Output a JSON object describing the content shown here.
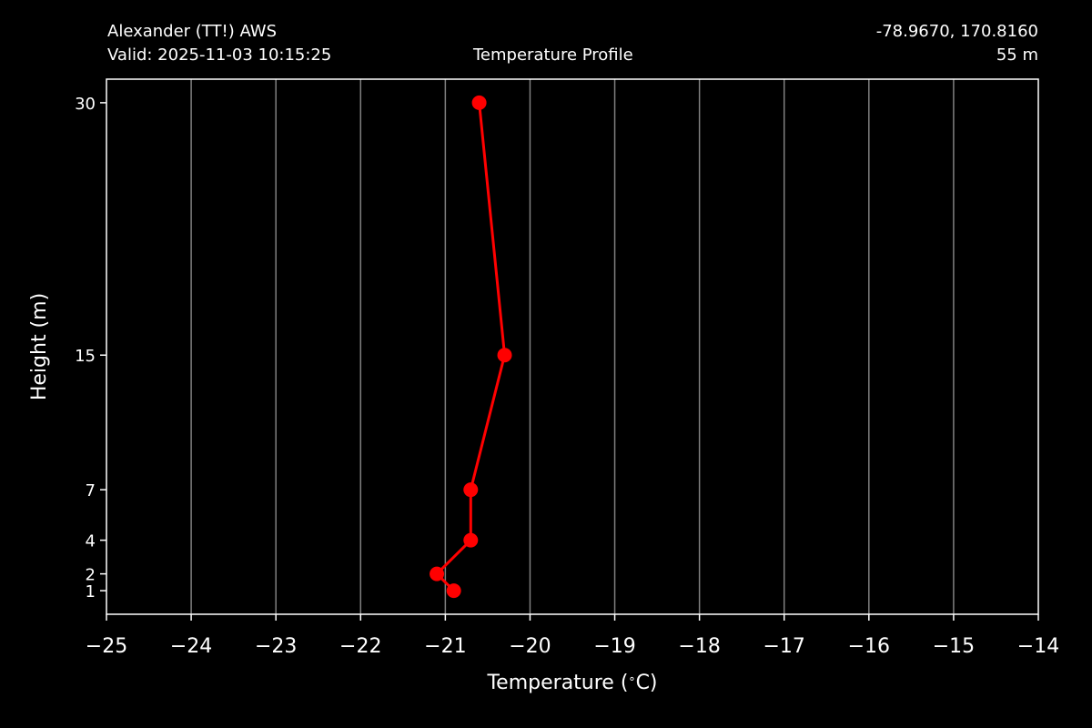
{
  "header": {
    "station": "Alexander (TT!) AWS",
    "valid": "Valid: 2025-11-03 10:15:25",
    "title": "Temperature Profile",
    "coords": "-78.9670, 170.8160",
    "elevation": "55 m"
  },
  "colors": {
    "background": "#000000",
    "series": "#ff0000",
    "grid": "#808080",
    "axes": "#ffffff"
  },
  "chart_data": {
    "type": "line",
    "title": "Temperature Profile",
    "xlabel": "Temperature ($^\\circ$C)",
    "ylabel": "Height (m)",
    "xlim": [
      -25,
      -14
    ],
    "x_ticks": [
      -25,
      -24,
      -23,
      -22,
      -21,
      -20,
      -19,
      -18,
      -17,
      -16,
      -15,
      -14
    ],
    "y_ticks": [
      1,
      2,
      4,
      7,
      15,
      30
    ],
    "ylim": [
      -0.4,
      31.4
    ],
    "grid": "vertical",
    "series": [
      {
        "marker": "circle",
        "points": [
          {
            "temperature": -20.9,
            "height": 1
          },
          {
            "temperature": -21.1,
            "height": 2
          },
          {
            "temperature": -20.7,
            "height": 4
          },
          {
            "temperature": -20.7,
            "height": 7
          },
          {
            "temperature": -20.3,
            "height": 15
          },
          {
            "temperature": -20.6,
            "height": 30
          }
        ]
      }
    ]
  }
}
